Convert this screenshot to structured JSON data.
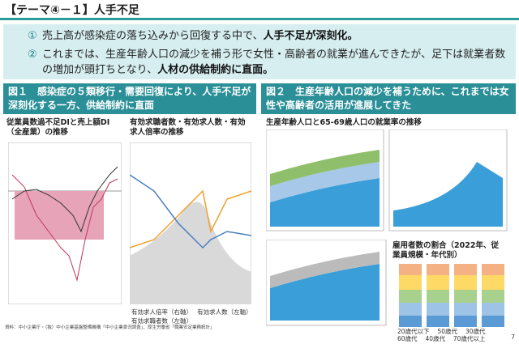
{
  "header": {
    "title": "【テーマ④－１】人手不足"
  },
  "points": [
    {
      "number": "①",
      "text": "売上高が感染症の落ち込みから回復する中で、",
      "emphasis": "人手不足が深刻化。"
    },
    {
      "number": "②",
      "text": "これまでは、生産年齢人口の減少を補う形で女性・高齢者の就業が進んできたが、足下は就業者数の増加が頭打ちとなり、",
      "emphasis": "人材の供給制約に直面。"
    }
  ],
  "figure1": {
    "title": "図１　感染症の５類移行・需要回復により、人手不足が深刻化する一方、供給制約に直面",
    "chart_a": "従業員数過不足DIと売上額DI（全産業）の推移",
    "chart_b": "有効求職者数・有効求人数・有効求人倍率の推移",
    "legend_b": [
      "有効求人倍率（右軸）",
      "有効求人数（左軸）",
      "有効求職者数（左軸）"
    ]
  },
  "figure2": {
    "title": "図２　生産年齢人口の減少を補うために、これまでは女性や高齢者の活用が進展してきた",
    "chart_a": "生産年齢人口と65-69歳人口の就業率の推移",
    "chart_b": "雇用者数の割合（2022年、従業員規模・年代別）",
    "legend_b": [
      "20歳代以下",
      "50歳代",
      "30歳代",
      "60歳代",
      "40歳代",
      "70歳代以上"
    ]
  },
  "source": "資料：中小企業庁・（独）中小企業基盤整備機構「中小企業景況調査」、厚生労働省「職業安定業務統計」",
  "page": "7"
}
